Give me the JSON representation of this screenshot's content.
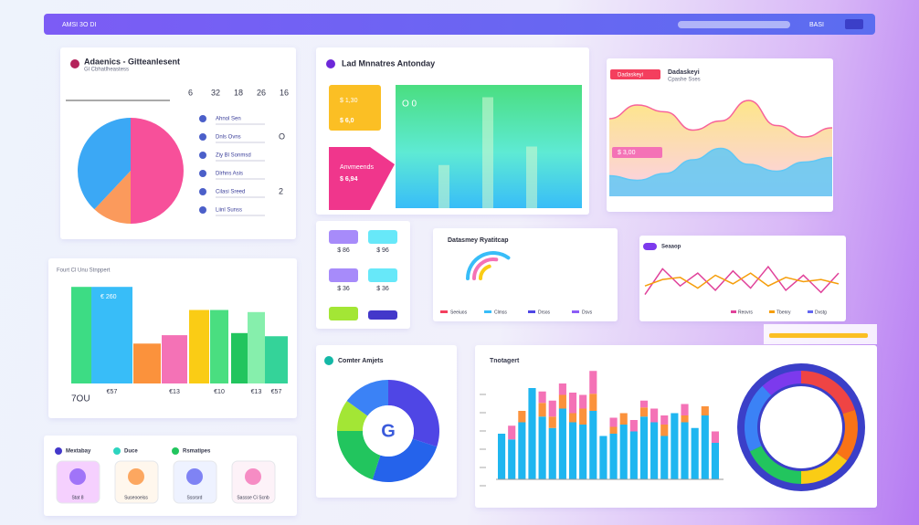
{
  "header": {
    "title": "AMSI 3O DI",
    "user": "BASI"
  },
  "pie_panel": {
    "title": "Adaenics - Gitteanlesent",
    "subtitle": "Gl Cbhatlheastess",
    "stats": [
      "6",
      "32",
      "18",
      "26",
      "16"
    ],
    "items": [
      {
        "label": "Ahnol Sen"
      },
      {
        "label": "Dnls Ovns",
        "value": "O"
      },
      {
        "label": "Ziy Bl Sonmsd"
      },
      {
        "label": "Dlrhns Asis"
      },
      {
        "label": "Cilasi Sreed",
        "value": "2"
      },
      {
        "label": "Liinl Sunss"
      }
    ],
    "chart_data": {
      "type": "pie",
      "values": [
        50,
        12,
        38
      ],
      "colors": [
        "#f7509a",
        "#fb9a5c",
        "#3ba8f5"
      ]
    }
  },
  "monitor_panel": {
    "title": "Lad Mnnatres Antonday",
    "tile1_label": "$ 1,30",
    "tile1_value": "$ 6,0",
    "tile2_label": "Anvmeends",
    "tile2_value": "$ 6,94",
    "marker": "O 0",
    "chart_data": {
      "type": "bar",
      "values": [
        35,
        90,
        50
      ],
      "ylim": [
        0,
        100
      ],
      "color": "#c9f7d0"
    }
  },
  "area_panel": {
    "badge": "Dadaskeyi",
    "title": "Dadaskeyi",
    "subtitle": "Cpashe Sses",
    "tag": "$ 3,00",
    "chart_data": {
      "type": "area",
      "ylim": [
        0,
        100
      ],
      "series": [
        {
          "color": "#f7629a",
          "values": [
            68,
            80,
            74,
            58,
            66,
            84,
            62,
            52,
            60
          ]
        },
        {
          "color": "#60c8f5",
          "values": [
            18,
            14,
            20,
            32,
            42,
            28,
            22,
            30,
            34
          ]
        }
      ]
    }
  },
  "bar_panel": {
    "title": "Fourt Cl Unu Stnppert",
    "total": "7OU",
    "badge": "€ 260",
    "chart_data": {
      "type": "bar",
      "ylim": [
        0,
        100
      ],
      "categories": [
        null,
        "€57",
        null,
        "€13",
        null,
        "€10",
        null,
        "€13",
        "€57"
      ],
      "values": [
        92,
        92,
        38,
        46,
        70,
        70,
        48,
        68,
        45
      ],
      "colors": [
        "#3ddc84",
        "#38bdf8",
        "#fb923c",
        "#f472b6",
        "#facc15",
        "#4ade80",
        "#22c55e",
        "#86efac",
        "#34d399"
      ]
    }
  },
  "tiles_panel": {
    "tiles": [
      "$ 86",
      "$ 96",
      "$ 36",
      "$ 36"
    ]
  },
  "radial_panel": {
    "title": "Datasmey Ryatitcap",
    "legend": [
      "Seeiuos",
      "Clmss",
      "Drsos",
      "Dsvs"
    ],
    "chart_data": {
      "type": "radial",
      "values": [
        70,
        55,
        40
      ],
      "colors": [
        "#38bdf8",
        "#f472b6",
        "#facc15"
      ]
    }
  },
  "line_panel": {
    "title": "Seaaop",
    "legend": [
      "Reovrs",
      "Tbenry",
      "Dvstg"
    ],
    "chart_data": {
      "type": "line",
      "ylim": [
        0,
        100
      ],
      "series": [
        {
          "color": "#e0429a",
          "values": [
            20,
            80,
            40,
            70,
            30,
            75,
            35,
            85,
            30,
            65,
            25,
            70
          ]
        },
        {
          "color": "#f59e0b",
          "values": [
            40,
            55,
            60,
            35,
            65,
            45,
            70,
            40,
            60,
            50,
            55,
            45
          ]
        }
      ]
    }
  },
  "donut_panel": {
    "title": "Comter Amjets",
    "center": "G",
    "chart_data": {
      "type": "pie",
      "values": [
        30,
        25,
        20,
        10,
        15
      ],
      "colors": [
        "#4f46e5",
        "#2563eb",
        "#22c55e",
        "#a3e635",
        "#3b82f6"
      ]
    }
  },
  "stack_panel": {
    "title": "Tnotagert",
    "chart_data": {
      "type": "stacked-bar",
      "ylim": [
        0,
        100
      ],
      "series": [
        {
          "color": "#1fb6f0",
          "values": [
            40,
            35,
            50,
            80,
            55,
            45,
            62,
            50,
            48,
            60,
            38,
            40,
            48,
            42,
            55,
            50,
            38,
            58,
            50,
            45,
            56,
            32
          ]
        },
        {
          "color": "#fb923c",
          "values": [
            0,
            0,
            10,
            0,
            12,
            10,
            12,
            8,
            14,
            15,
            0,
            6,
            10,
            0,
            8,
            0,
            10,
            0,
            6,
            0,
            8,
            0
          ]
        },
        {
          "color": "#f472b6",
          "values": [
            0,
            12,
            0,
            0,
            10,
            14,
            10,
            18,
            12,
            20,
            0,
            8,
            0,
            10,
            6,
            12,
            8,
            0,
            10,
            0,
            0,
            10
          ]
        }
      ]
    }
  },
  "ring_panel": {
    "chart_data": {
      "type": "pie",
      "values": [
        20,
        15,
        15,
        18,
        20,
        12
      ],
      "colors": [
        "#ef4444",
        "#f97316",
        "#facc15",
        "#22c55e",
        "#3b82f6",
        "#7c3aed"
      ]
    }
  },
  "legend_panel": {
    "items": [
      "Mextabay",
      "Duce",
      "Rsmatipes"
    ],
    "captions": [
      "Stat 8",
      "Suseooeiss",
      "Sssrsrd",
      "Sassse Ci Scnb"
    ]
  }
}
